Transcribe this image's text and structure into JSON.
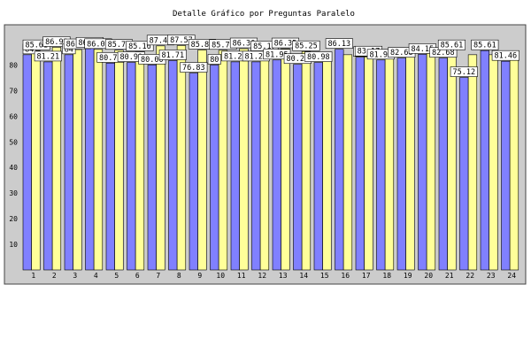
{
  "chart_data": {
    "type": "bar",
    "title": "Detalle Gráfico por Preguntas Paralelo",
    "xlabel": "",
    "ylabel": "",
    "ylim": [
      0,
      95
    ],
    "y_ticks": [
      10,
      20,
      30,
      40,
      50,
      60,
      70,
      80
    ],
    "grid": false,
    "legend": "none",
    "categories": [
      "1",
      "2",
      "3",
      "4",
      "5",
      "6",
      "7",
      "8",
      "9",
      "10",
      "11",
      "12",
      "13",
      "14",
      "15",
      "16",
      "17",
      "18",
      "19",
      "20",
      "21",
      "22",
      "23",
      "24"
    ],
    "series": [
      {
        "color": "#8080ff",
        "values": [
          84.0,
          81.21,
          84.0,
          86.61,
          80.73,
          80.99,
          80.0,
          81.71,
          76.83,
          80.0,
          81.22,
          81.22,
          81.95,
          80.24,
          80.98,
          86.13,
          83.0,
          81.95,
          82.68,
          84.15,
          82.68,
          75.12,
          85.61,
          81.46
        ],
        "labels": [
          "84",
          "81.21",
          "84",
          "86.61",
          "80.73",
          "80.99",
          "80.00",
          "81.71",
          "76.83",
          "80",
          "81.22",
          "81.22",
          "81.95",
          "80.24",
          "80.98",
          "86.13",
          "83",
          "81.95",
          "82.68",
          "84.15",
          "82.68",
          "75.12",
          "85.61",
          "81.46"
        ]
      },
      {
        "color": "#ffff99",
        "values": [
          85.61,
          86.9,
          86.0,
          86.08,
          85.77,
          85.16,
          87.46,
          87.57,
          85.88,
          85.75,
          86.36,
          85.17,
          86.35,
          85.25,
          84.0,
          84.0,
          83.17,
          84.0,
          84.0,
          85.61,
          85.61,
          84.0,
          84.0,
          84.0
        ],
        "labels": [
          "85.61",
          "86.90",
          "86.00",
          "86.08",
          "85.77",
          "85.16",
          "87.46",
          "87.57",
          "85.88",
          "85.75",
          "86.36",
          "85.17",
          "86.35",
          "85.25",
          "",
          "",
          "83.17",
          "",
          "",
          "",
          "85.61",
          "",
          "",
          ""
        ]
      }
    ]
  },
  "colors": {
    "plot_background": "#cccccc",
    "bar_outline": "#000000"
  }
}
